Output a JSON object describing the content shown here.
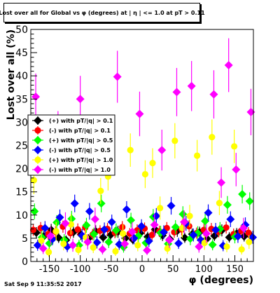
{
  "title": "Lost over all for Global vs φ (degrees) at | η | <= 1.0 at pT > 0.11",
  "timestamp": "Sat Sep  9 11:35:52 2017",
  "chart_data": {
    "type": "scatter",
    "xlabel": "φ (degrees)",
    "ylabel": "Lost over all (%)",
    "xlim": [
      -180,
      180
    ],
    "ylim": [
      0,
      50
    ],
    "x_ticks": [
      -150,
      -100,
      -50,
      0,
      50,
      100,
      150
    ],
    "y_ticks": [
      0,
      5,
      10,
      15,
      20,
      25,
      30,
      35,
      40,
      45,
      50
    ],
    "grid": false,
    "legend_position": "left-middle",
    "series": [
      {
        "name": "(+) with pT/|q| > 0.1",
        "color": "#000000",
        "marker": "diamond",
        "x": [
          -171,
          -159,
          -147,
          -135,
          -123,
          -111,
          -99,
          -87,
          -75,
          -63,
          -51,
          -39,
          -27,
          -15,
          -3,
          9,
          21,
          33,
          45,
          57,
          69,
          81,
          93,
          105,
          117,
          129,
          141,
          153,
          165,
          177
        ],
        "y": [
          6.2,
          5.4,
          6.8,
          5.1,
          4.6,
          6.3,
          5.8,
          4.9,
          6.5,
          5.2,
          5.7,
          6.4,
          5.0,
          4.7,
          6.1,
          5.3,
          6.9,
          5.6,
          4.8,
          6.6,
          5.1,
          5.9,
          6.3,
          4.9,
          5.5,
          6.7,
          5.2,
          6.0,
          5.4,
          5.3
        ],
        "err": [
          1.2,
          1.1,
          1.3,
          1.1,
          1.0,
          1.2,
          1.2,
          1.0,
          1.3,
          1.1,
          1.2,
          1.3,
          1.1,
          1.0,
          1.2,
          1.1,
          1.3,
          1.2,
          1.0,
          1.3,
          1.1,
          1.2,
          1.2,
          1.0,
          1.1,
          1.3,
          1.1,
          1.2,
          1.1,
          1.1
        ]
      },
      {
        "name": "(-) with pT/|q| > 0.1",
        "color": "#ff0000",
        "marker": "circle",
        "x": [
          -176,
          -164,
          -152,
          -140,
          -128,
          -116,
          -104,
          -92,
          -80,
          -68,
          -56,
          -44,
          -32,
          -20,
          -8,
          4,
          16,
          28,
          40,
          52,
          64,
          76,
          88,
          100,
          112,
          124,
          136,
          148,
          160,
          172
        ],
        "y": [
          6.8,
          7.2,
          5.9,
          6.4,
          7.5,
          6.1,
          6.9,
          7.3,
          5.8,
          6.6,
          7.0,
          6.2,
          7.4,
          6.0,
          6.7,
          7.1,
          5.7,
          6.5,
          7.2,
          6.3,
          6.9,
          7.6,
          6.1,
          6.8,
          7.0,
          6.4,
          7.3,
          5.9,
          6.6,
          6.2
        ],
        "err": [
          1.3,
          1.3,
          1.2,
          1.2,
          1.3,
          1.2,
          1.3,
          1.3,
          1.2,
          1.2,
          1.3,
          1.2,
          1.3,
          1.2,
          1.3,
          1.3,
          1.2,
          1.2,
          1.3,
          1.2,
          1.3,
          1.3,
          1.2,
          1.3,
          1.3,
          1.2,
          1.3,
          1.2,
          1.2,
          1.2
        ]
      },
      {
        "name": "(+) with pT/|q| > 0.5",
        "color": "#00ff00",
        "marker": "diamond",
        "x": [
          -174,
          -162,
          -150,
          -138,
          -126,
          -114,
          -102,
          -90,
          -78,
          -66,
          -54,
          -42,
          -30,
          -18,
          -6,
          6,
          18,
          30,
          42,
          54,
          66,
          78,
          90,
          102,
          114,
          126,
          138,
          150,
          162,
          174
        ],
        "y": [
          10.8,
          5.2,
          3.9,
          8.4,
          4.6,
          9.2,
          3.5,
          7.8,
          5.9,
          12.5,
          4.2,
          6.7,
          3.1,
          8.9,
          5.5,
          4.0,
          9.6,
          6.2,
          3.8,
          7.4,
          10.2,
          4.9,
          6.1,
          8.7,
          3.6,
          7.0,
          12.2,
          5.3,
          14.5,
          13.0
        ],
        "err": [
          1.7,
          1.4,
          1.2,
          1.6,
          1.3,
          1.7,
          1.2,
          1.6,
          1.4,
          1.9,
          1.3,
          1.5,
          1.2,
          1.6,
          1.4,
          1.2,
          1.7,
          1.5,
          1.2,
          1.5,
          1.7,
          1.4,
          1.5,
          1.6,
          1.2,
          1.5,
          1.9,
          1.4,
          2.0,
          1.9
        ]
      },
      {
        "name": "(-) with pT/|q| > 0.5",
        "color": "#0000ff",
        "marker": "diamond",
        "x": [
          -169,
          -157,
          -145,
          -133,
          -121,
          -109,
          -97,
          -85,
          -73,
          -61,
          -49,
          -37,
          -25,
          -13,
          -1,
          11,
          23,
          35,
          47,
          59,
          71,
          83,
          95,
          107,
          119,
          131,
          143,
          155,
          167,
          179
        ],
        "y": [
          3.5,
          7.2,
          4.8,
          9.5,
          3.2,
          12.5,
          5.6,
          10.8,
          4.1,
          6.9,
          8.5,
          3.7,
          11.2,
          5.0,
          7.6,
          4.4,
          9.8,
          6.3,
          12.0,
          3.9,
          8.2,
          5.7,
          4.6,
          10.5,
          6.8,
          3.4,
          9.1,
          5.4,
          7.9,
          5.2
        ],
        "err": [
          1.2,
          1.5,
          1.3,
          1.7,
          1.2,
          1.9,
          1.4,
          1.8,
          1.3,
          1.5,
          1.6,
          1.2,
          1.8,
          1.3,
          1.5,
          1.3,
          1.7,
          1.5,
          1.9,
          1.2,
          1.6,
          1.4,
          1.3,
          1.8,
          1.5,
          1.2,
          1.7,
          1.4,
          1.6,
          1.4
        ]
      },
      {
        "name": "(+) with pT/|q| > 1.0",
        "color": "#ffff00",
        "marker": "circle",
        "x": [
          -175,
          -163,
          -151,
          -139,
          -127,
          -115,
          -103,
          -91,
          -79,
          -67,
          -55,
          -43,
          -31,
          -19,
          -7,
          5,
          17,
          29,
          41,
          53,
          65,
          77,
          89,
          101,
          113,
          125,
          137,
          149,
          161,
          173
        ],
        "y": [
          17.5,
          4.5,
          2.0,
          6.5,
          3.8,
          8.0,
          2.5,
          5.2,
          3.0,
          15.2,
          18.3,
          2.2,
          6.0,
          24.0,
          3.5,
          18.8,
          21.2,
          11.5,
          2.8,
          26.0,
          7.2,
          9.8,
          22.8,
          4.0,
          26.8,
          12.6,
          3.2,
          24.8,
          2.6,
          4.2
        ],
        "err": [
          3.0,
          1.6,
          1.0,
          2.0,
          1.4,
          2.2,
          1.1,
          1.8,
          1.2,
          2.8,
          3.0,
          1.0,
          2.0,
          3.6,
          1.3,
          3.0,
          3.2,
          2.5,
          1.2,
          3.8,
          2.1,
          2.4,
          3.4,
          1.5,
          3.8,
          2.6,
          1.2,
          3.6,
          1.1,
          1.5
        ]
      },
      {
        "name": "(-) with pT/|q| > 1.0",
        "color": "#ff00ff",
        "marker": "diamond",
        "x": [
          -172,
          -160,
          -148,
          -136,
          -124,
          -112,
          -100,
          -88,
          -76,
          -64,
          -52,
          -40,
          -28,
          -16,
          -4,
          8,
          20,
          32,
          44,
          56,
          68,
          80,
          92,
          104,
          116,
          128,
          140,
          152,
          164,
          176
        ],
        "y": [
          35.5,
          2.8,
          5.5,
          27.8,
          8.2,
          3.5,
          35.0,
          4.2,
          9.1,
          2.6,
          25.5,
          39.8,
          3.8,
          6.4,
          31.8,
          2.4,
          7.9,
          24.0,
          4.6,
          36.5,
          8.5,
          37.8,
          3.2,
          6.0,
          36.0,
          17.0,
          42.3,
          19.8,
          7.2,
          32.2
        ],
        "err": [
          5.0,
          1.2,
          2.0,
          4.6,
          2.4,
          1.4,
          5.0,
          1.6,
          2.5,
          1.1,
          4.4,
          5.6,
          1.5,
          2.1,
          4.8,
          1.0,
          2.3,
          4.4,
          1.7,
          5.2,
          2.5,
          5.4,
          1.3,
          2.0,
          5.2,
          3.3,
          5.8,
          3.6,
          2.2,
          5.0
        ]
      }
    ]
  }
}
